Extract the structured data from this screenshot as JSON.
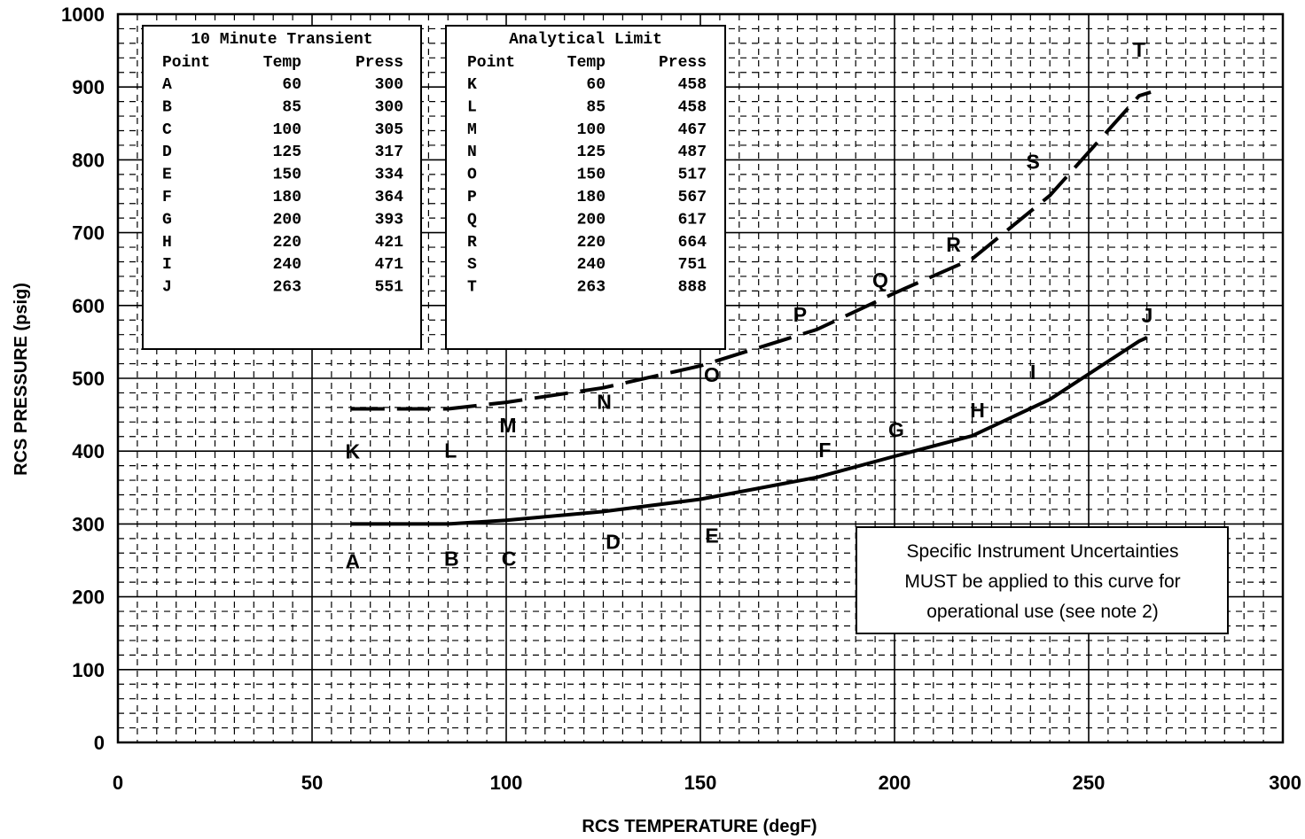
{
  "chart_data": {
    "type": "line",
    "xlabel": "RCS TEMPERATURE (degF)",
    "ylabel": "RCS PRESSURE (psig)",
    "xlim": [
      0,
      300
    ],
    "ylim": [
      0,
      1000
    ],
    "x_ticks": [
      "0",
      "50",
      "100",
      "150",
      "200",
      "250",
      "300"
    ],
    "y_ticks": [
      "0",
      "100",
      "200",
      "300",
      "400",
      "500",
      "600",
      "700",
      "800",
      "900",
      "1000"
    ],
    "grid": "major solid, minor dashed",
    "series": [
      {
        "style": "solid",
        "points": [
          {
            "label": "A",
            "x": 60,
            "y": 300
          },
          {
            "label": "B",
            "x": 85,
            "y": 300
          },
          {
            "label": "C",
            "x": 100,
            "y": 305
          },
          {
            "label": "D",
            "x": 125,
            "y": 317
          },
          {
            "label": "E",
            "x": 150,
            "y": 334
          },
          {
            "label": "F",
            "x": 180,
            "y": 364
          },
          {
            "label": "G",
            "x": 200,
            "y": 393
          },
          {
            "label": "H",
            "x": 220,
            "y": 421
          },
          {
            "label": "I",
            "x": 240,
            "y": 471
          },
          {
            "label": "J",
            "x": 263,
            "y": 551
          }
        ]
      },
      {
        "style": "dashed",
        "points": [
          {
            "label": "K",
            "x": 60,
            "y": 458
          },
          {
            "label": "L",
            "x": 85,
            "y": 458
          },
          {
            "label": "M",
            "x": 100,
            "y": 467
          },
          {
            "label": "N",
            "x": 125,
            "y": 487
          },
          {
            "label": "O",
            "x": 150,
            "y": 517
          },
          {
            "label": "P",
            "x": 180,
            "y": 567
          },
          {
            "label": "Q",
            "x": 200,
            "y": 617
          },
          {
            "label": "R",
            "x": 220,
            "y": 664
          },
          {
            "label": "S",
            "x": 240,
            "y": 751
          },
          {
            "label": "T",
            "x": 263,
            "y": 888
          }
        ]
      }
    ],
    "tables": [
      {
        "title": "10 Minute Transient",
        "headers": [
          "Point",
          "Temp",
          "Press"
        ],
        "rows": [
          [
            "A",
            "60",
            "300"
          ],
          [
            "B",
            "85",
            "300"
          ],
          [
            "C",
            "100",
            "305"
          ],
          [
            "D",
            "125",
            "317"
          ],
          [
            "E",
            "150",
            "334"
          ],
          [
            "F",
            "180",
            "364"
          ],
          [
            "G",
            "200",
            "393"
          ],
          [
            "H",
            "220",
            "421"
          ],
          [
            "I",
            "240",
            "471"
          ],
          [
            "J",
            "263",
            "551"
          ]
        ]
      },
      {
        "title": "Analytical Limit",
        "headers": [
          "Point",
          "Temp",
          "Press"
        ],
        "rows": [
          [
            "K",
            "60",
            "458"
          ],
          [
            "L",
            "85",
            "458"
          ],
          [
            "M",
            "100",
            "467"
          ],
          [
            "N",
            "125",
            "487"
          ],
          [
            "O",
            "150",
            "517"
          ],
          [
            "P",
            "180",
            "567"
          ],
          [
            "Q",
            "200",
            "617"
          ],
          [
            "R",
            "220",
            "664"
          ],
          [
            "S",
            "240",
            "751"
          ],
          [
            "T",
            "263",
            "888"
          ]
        ]
      }
    ],
    "note": [
      "Specific Instrument Uncertainties",
      "MUST be applied to this curve for",
      "operational use (see note 2)"
    ]
  }
}
